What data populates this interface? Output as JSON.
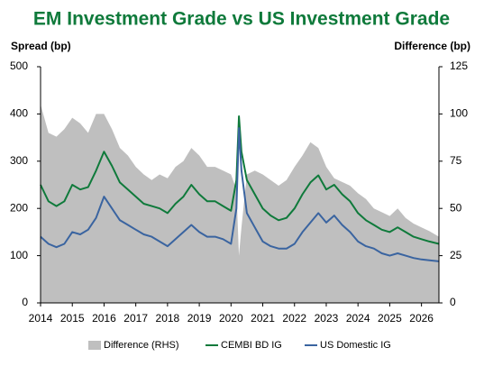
{
  "chart_data": {
    "type": "line",
    "title": "EM Investment Grade vs US Investment Grade",
    "y_label": "Spread (bp)",
    "y2_label": "Difference (bp)",
    "x": [
      2014.0,
      2014.25,
      2014.5,
      2014.75,
      2015.0,
      2015.25,
      2015.5,
      2015.75,
      2016.0,
      2016.25,
      2016.5,
      2016.75,
      2017.0,
      2017.25,
      2017.5,
      2017.75,
      2018.0,
      2018.25,
      2018.5,
      2018.75,
      2019.0,
      2019.25,
      2019.5,
      2019.75,
      2020.0,
      2020.17,
      2020.25,
      2020.33,
      2020.5,
      2020.75,
      2021.0,
      2021.25,
      2021.5,
      2021.75,
      2022.0,
      2022.25,
      2022.5,
      2022.75,
      2023.0,
      2023.25,
      2023.5,
      2023.75,
      2024.0,
      2024.25,
      2024.5,
      2024.75,
      2025.0,
      2025.25,
      2025.5,
      2025.75,
      2026.0,
      2026.25,
      2026.55
    ],
    "series": [
      {
        "name": "Difference (RHS)",
        "color": "#bfbfbf",
        "axis": "y2",
        "style": "area",
        "values": [
          105,
          90,
          88,
          92,
          98,
          95,
          90,
          100,
          100,
          92,
          82,
          78,
          72,
          68,
          65,
          68,
          66,
          72,
          75,
          82,
          78,
          72,
          72,
          70,
          68,
          60,
          25,
          40,
          68,
          70,
          68,
          65,
          62,
          65,
          72,
          78,
          85,
          82,
          72,
          66,
          64,
          62,
          58,
          55,
          50,
          48,
          46,
          50,
          45,
          42,
          40,
          38,
          35
        ]
      },
      {
        "name": "CEMBI BD IG",
        "color": "#0f7a3b",
        "style": "line",
        "values": [
          250,
          215,
          205,
          215,
          250,
          240,
          245,
          280,
          320,
          290,
          255,
          240,
          225,
          210,
          205,
          200,
          190,
          210,
          225,
          250,
          230,
          215,
          215,
          205,
          195,
          260,
          395,
          320,
          260,
          230,
          200,
          185,
          175,
          180,
          200,
          230,
          255,
          270,
          240,
          250,
          230,
          215,
          190,
          175,
          165,
          155,
          150,
          160,
          150,
          140,
          135,
          130,
          125
        ]
      },
      {
        "name": "US Domestic IG",
        "color": "#3a64a0",
        "style": "line",
        "values": [
          140,
          125,
          118,
          125,
          150,
          145,
          155,
          180,
          225,
          200,
          175,
          165,
          155,
          145,
          140,
          130,
          120,
          135,
          150,
          165,
          150,
          140,
          140,
          135,
          125,
          200,
          370,
          280,
          190,
          160,
          130,
          120,
          115,
          115,
          125,
          150,
          170,
          190,
          170,
          185,
          165,
          150,
          130,
          120,
          115,
          105,
          100,
          105,
          100,
          95,
          92,
          90,
          88
        ]
      }
    ],
    "xlim": [
      2014,
      2026.55
    ],
    "xticks": [
      2014,
      2015,
      2016,
      2017,
      2018,
      2019,
      2020,
      2021,
      2022,
      2023,
      2024,
      2025,
      2026
    ],
    "ylim": [
      0,
      500
    ],
    "yticks": [
      0,
      100,
      200,
      300,
      400,
      500
    ],
    "y2lim": [
      0,
      125
    ],
    "y2ticks": [
      0,
      25,
      50,
      75,
      100,
      125
    ],
    "grid": false,
    "legend": "bottom"
  }
}
